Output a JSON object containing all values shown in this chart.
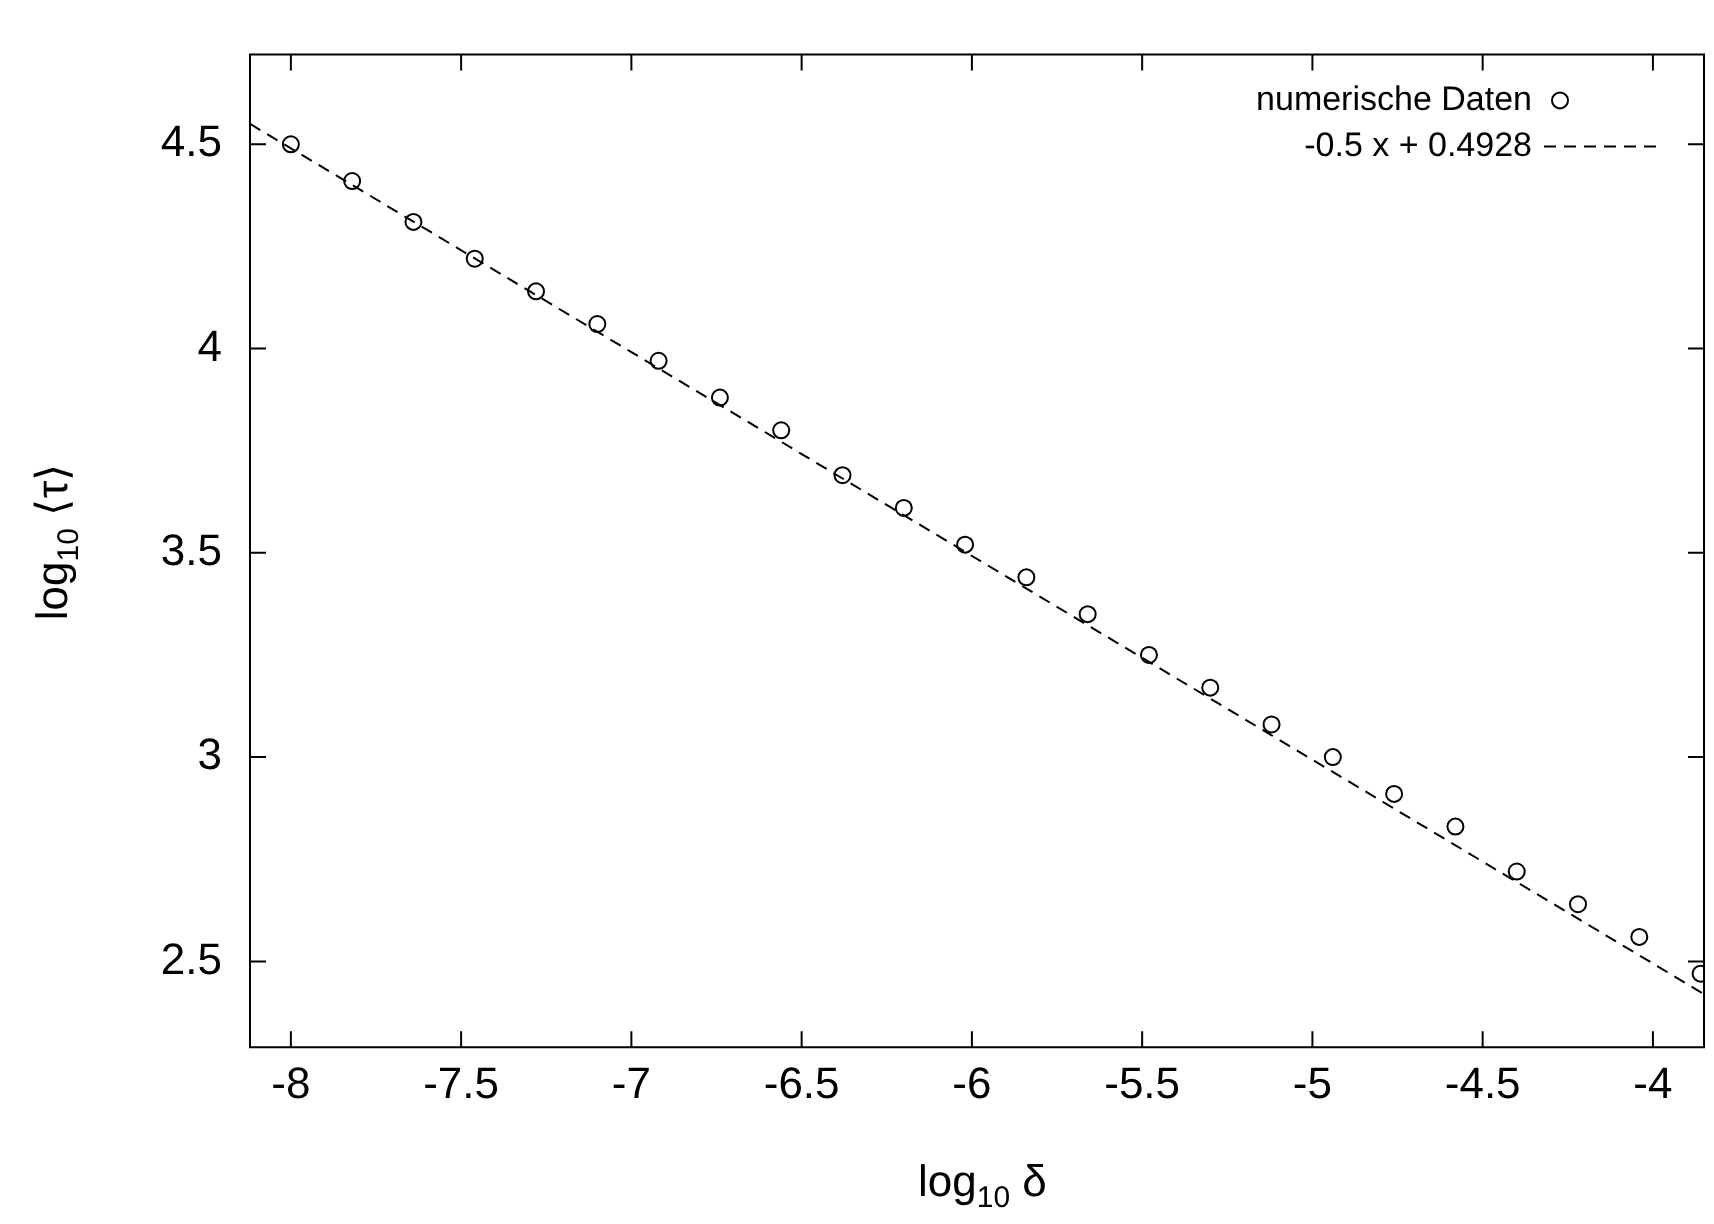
{
  "chart_data": {
    "type": "scatter",
    "xlabel": "log$_{10}$ δ",
    "ylabel": "log$_{10}$ ⟨τ⟩",
    "xlim": [
      -8.12,
      -3.85
    ],
    "ylim": [
      2.29,
      4.72
    ],
    "xticks": [
      -8,
      -7.5,
      -7,
      -6.5,
      -6,
      -5.5,
      -5,
      -4.5,
      -4
    ],
    "yticks": [
      2.5,
      3,
      3.5,
      4,
      4.5
    ],
    "grid": false,
    "legend": "top right",
    "series": [
      {
        "name": "numerische Daten",
        "marker": "circle",
        "color": "#000000",
        "x": [
          -8,
          -7.82,
          -7.64,
          -7.46,
          -7.28,
          -7.1,
          -6.92,
          -6.74,
          -6.56,
          -6.38,
          -6.2,
          -6.02,
          -5.84,
          -5.66,
          -5.48,
          -5.3,
          -5.12,
          -4.94,
          -4.76,
          -4.58,
          -4.4,
          -4.22,
          -4.04,
          -3.86
        ],
        "values": [
          4.5,
          4.41,
          4.31,
          4.22,
          4.14,
          4.06,
          3.97,
          3.88,
          3.8,
          3.69,
          3.61,
          3.52,
          3.44,
          3.35,
          3.25,
          3.17,
          3.08,
          3.0,
          2.91,
          2.83,
          2.72,
          2.64,
          2.56,
          2.47
        ]
      },
      {
        "name": "-0.5 x + 0.4928",
        "type": "line",
        "marker": "none",
        "line_style": "dashed",
        "color": "#000000",
        "x": [
          -8.12,
          -3.85
        ],
        "values": [
          4.55,
          2.42
        ]
      }
    ]
  }
}
